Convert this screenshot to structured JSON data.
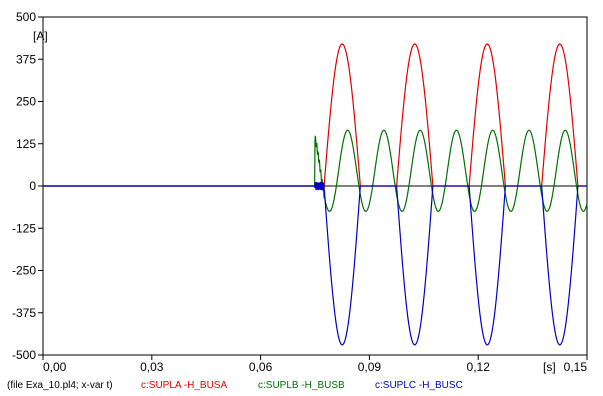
{
  "chart_data": {
    "type": "line",
    "xlabel": "[s]",
    "ylabel": "[A]",
    "xlim": [
      0,
      0.15
    ],
    "ylim": [
      -500,
      500
    ],
    "x_ticks": [
      0,
      0.03,
      0.06,
      0.09,
      0.12,
      0.15
    ],
    "x_tick_labels": [
      "0,00",
      "0,03",
      "0,06",
      "0,09",
      "0,12",
      "0,15"
    ],
    "y_ticks": [
      500,
      375,
      250,
      125,
      0,
      -125,
      -250,
      -375,
      -500
    ],
    "y_tick_labels": [
      "500",
      "375",
      "250",
      "125",
      "0",
      "-125",
      "-250",
      "-375",
      "-500"
    ],
    "grid": false,
    "legend_placement": "bottom",
    "footer_text": "(file Exa_10.pl4; x-var t)",
    "series": [
      {
        "name": "c:SUPLA -H_BUSA",
        "color": "#e00000",
        "fault_time": 0.075,
        "amplitude": 420,
        "start_phase_deg": 0,
        "frequency_hz": 50,
        "shape": "positive half-wave"
      },
      {
        "name": "c:SUPLB -H_BUSB",
        "color": "#007000",
        "fault_time": 0.075,
        "amplitude": 120,
        "offset": 45,
        "frequency_hz": 100,
        "shape": "rectified wave"
      },
      {
        "name": "c:SUPLC -H_BUSC",
        "color": "#0000c8",
        "fault_time": 0.075,
        "amplitude": 470,
        "frequency_hz": 50,
        "shape": "negative half-wave"
      }
    ]
  }
}
